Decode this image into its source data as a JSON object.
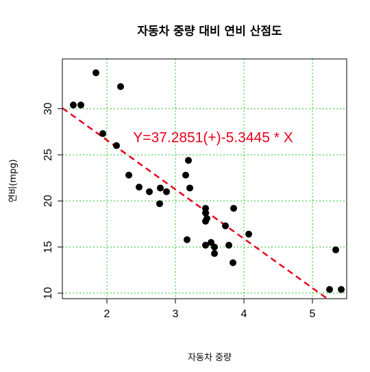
{
  "chart_data": {
    "type": "scatter",
    "title": "자동차 중량 대비 연비 산점도",
    "xlabel": "자동차 중량",
    "ylabel": "연비(mpg)",
    "xlim": [
      1.35,
      5.5
    ],
    "ylim": [
      9.4,
      35.4
    ],
    "x_ticks": [
      2,
      3,
      4,
      5
    ],
    "y_ticks": [
      10,
      15,
      20,
      25,
      30
    ],
    "grid": true,
    "grid_color": "#22c022",
    "point_color": "#000000",
    "points": [
      {
        "x": 1.51,
        "y": 30.4
      },
      {
        "x": 1.62,
        "y": 30.4
      },
      {
        "x": 1.84,
        "y": 33.9
      },
      {
        "x": 1.94,
        "y": 27.3
      },
      {
        "x": 2.14,
        "y": 26.0
      },
      {
        "x": 2.2,
        "y": 32.4
      },
      {
        "x": 2.32,
        "y": 22.8
      },
      {
        "x": 2.47,
        "y": 21.5
      },
      {
        "x": 2.62,
        "y": 21.0
      },
      {
        "x": 2.77,
        "y": 19.7
      },
      {
        "x": 2.78,
        "y": 21.4
      },
      {
        "x": 2.87,
        "y": 21.0
      },
      {
        "x": 3.15,
        "y": 22.8
      },
      {
        "x": 3.17,
        "y": 15.8
      },
      {
        "x": 3.19,
        "y": 24.4
      },
      {
        "x": 3.21,
        "y": 21.4
      },
      {
        "x": 3.44,
        "y": 15.2
      },
      {
        "x": 3.44,
        "y": 19.2
      },
      {
        "x": 3.44,
        "y": 18.7
      },
      {
        "x": 3.44,
        "y": 17.8
      },
      {
        "x": 3.46,
        "y": 18.1
      },
      {
        "x": 3.52,
        "y": 15.5
      },
      {
        "x": 3.57,
        "y": 15.0
      },
      {
        "x": 3.57,
        "y": 14.3
      },
      {
        "x": 3.73,
        "y": 17.3
      },
      {
        "x": 3.78,
        "y": 15.2
      },
      {
        "x": 3.84,
        "y": 13.3
      },
      {
        "x": 3.85,
        "y": 19.2
      },
      {
        "x": 4.07,
        "y": 16.4
      },
      {
        "x": 5.25,
        "y": 10.4
      },
      {
        "x": 5.34,
        "y": 14.7
      },
      {
        "x": 5.42,
        "y": 10.4
      }
    ],
    "regression": {
      "intercept": 37.2851,
      "slope": -5.3445,
      "color": "#e8001c",
      "style": "dashed"
    },
    "annotation": {
      "text": "Y=37.2851(+)-5.3445 * X",
      "color": "#e8001c",
      "x": 3.55,
      "y": 26.9
    }
  }
}
